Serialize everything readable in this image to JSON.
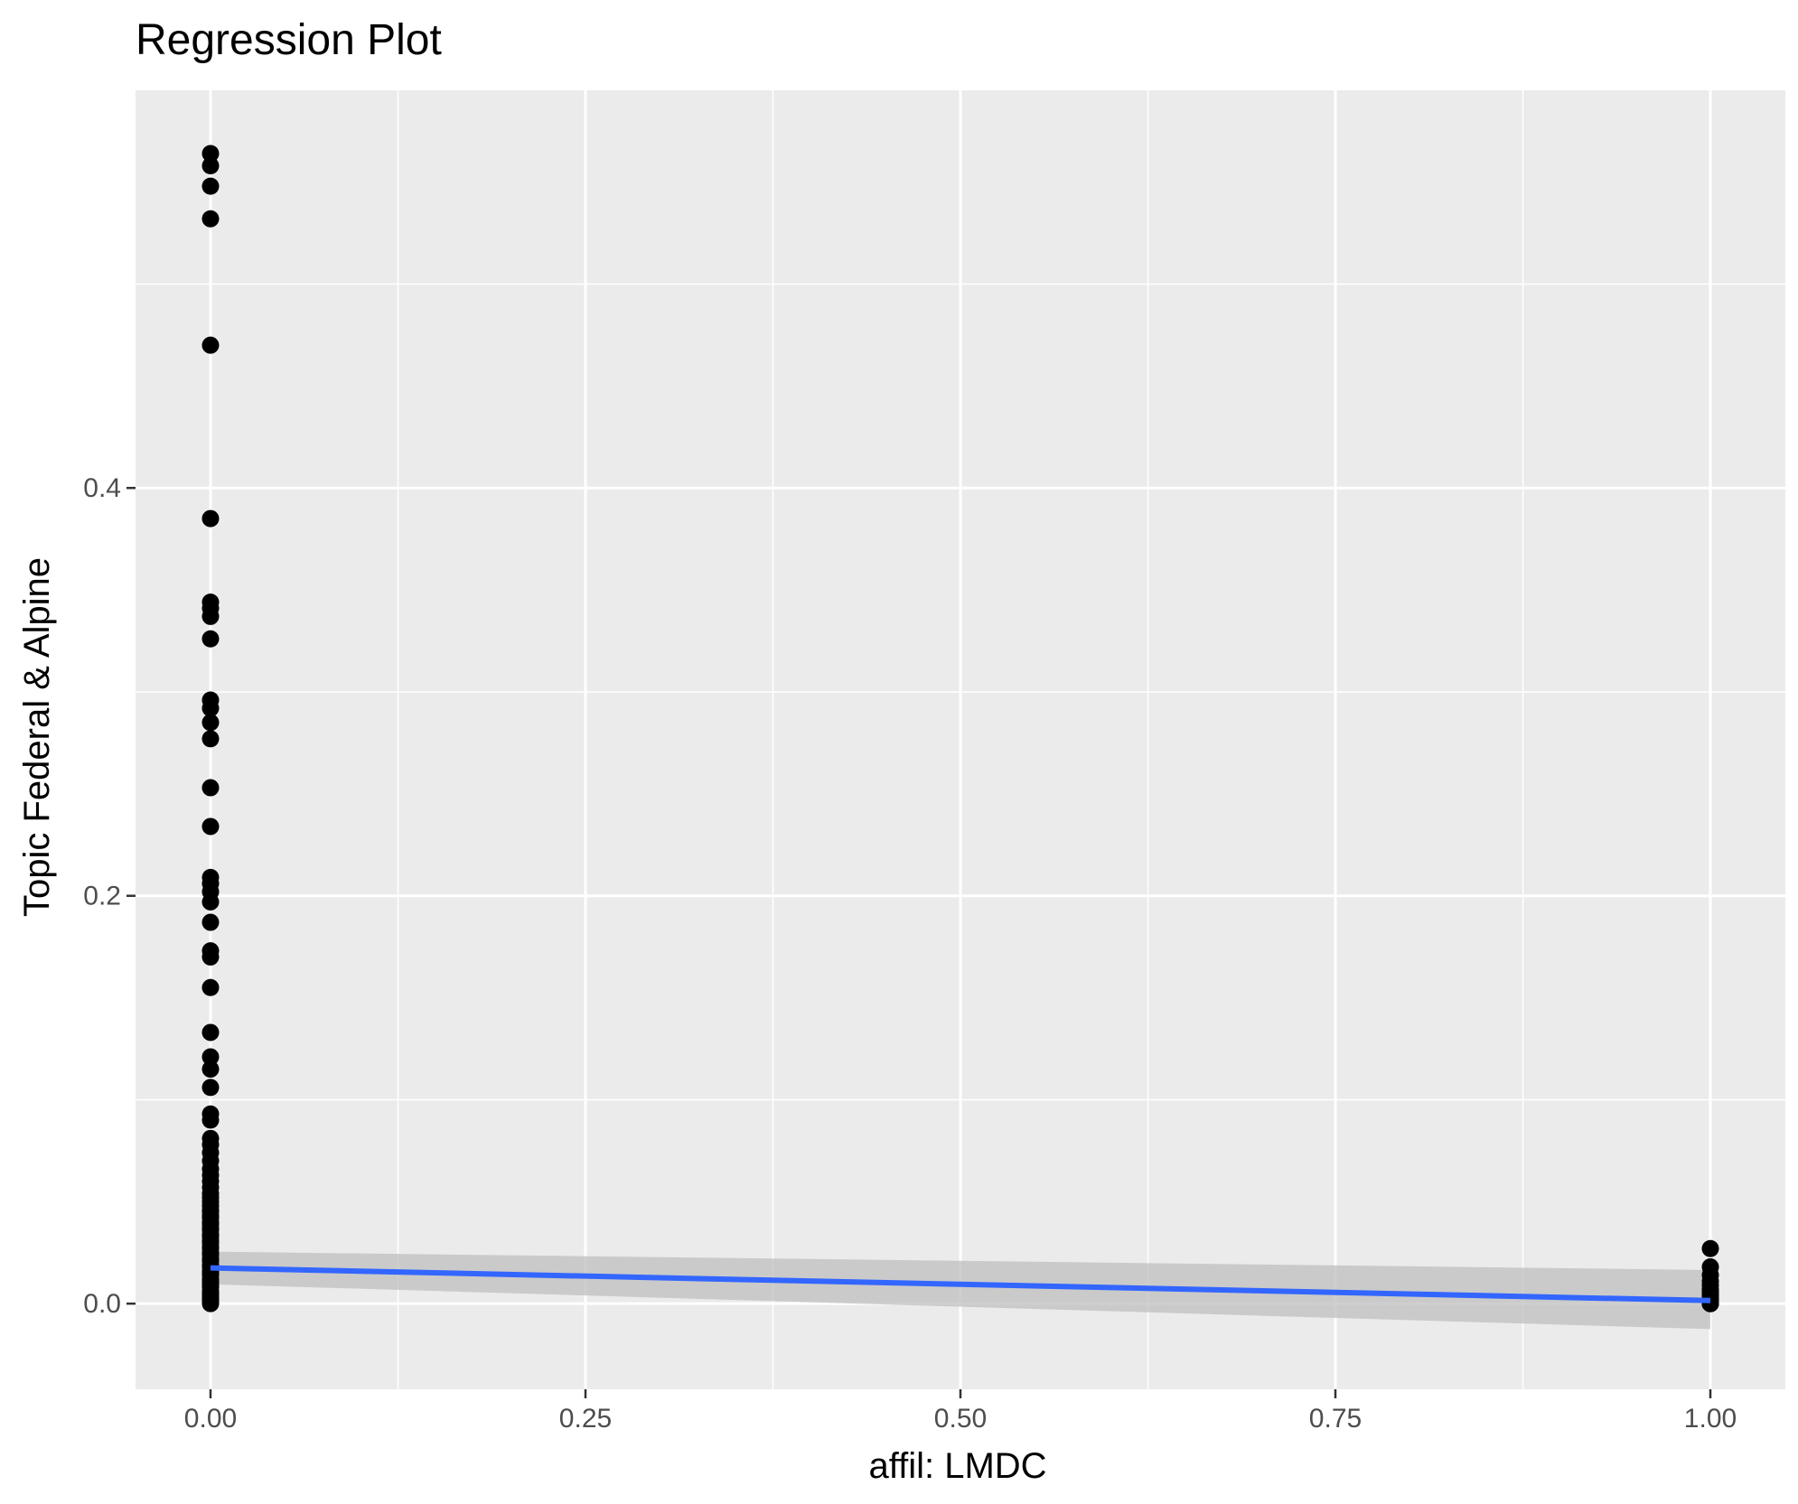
{
  "chart_data": {
    "type": "scatter",
    "title": "Regression Plot",
    "xlabel": "affil: LMDC",
    "ylabel": "Topic Federal & Alpine",
    "xlim": [
      -0.05,
      1.05
    ],
    "ylim": [
      -0.042,
      0.595
    ],
    "x_ticks": [
      0.0,
      0.25,
      0.5,
      0.75,
      1.0
    ],
    "x_tick_labels": [
      "0.00",
      "0.25",
      "0.50",
      "0.75",
      "1.00"
    ],
    "y_ticks": [
      0.0,
      0.2,
      0.4
    ],
    "y_tick_labels": [
      "0.0",
      "0.2",
      "0.4"
    ],
    "x_minor_ticks": [
      0.125,
      0.375,
      0.625,
      0.875
    ],
    "y_minor_ticks": [
      0.1,
      0.3,
      0.5
    ],
    "grid": true,
    "colors": {
      "panel": "#ebebeb",
      "grid": "#ffffff",
      "points": "#000000",
      "fit_line": "#3366ff",
      "confidence_band": "#bfbfbf"
    },
    "series": [
      {
        "x": [
          0,
          0,
          0,
          0,
          0,
          0,
          0,
          0,
          0,
          0,
          0,
          0,
          0,
          0,
          0,
          0,
          0,
          0,
          0,
          0,
          0,
          0,
          0,
          0,
          0,
          0,
          0,
          0,
          0,
          0,
          0,
          0,
          0,
          0,
          0,
          0,
          0,
          0,
          0,
          0,
          0,
          0,
          0,
          0,
          0,
          0,
          0,
          0,
          0,
          0,
          0,
          0,
          0,
          0,
          0,
          0,
          0,
          0,
          0,
          0,
          0,
          0,
          0,
          0,
          0,
          0,
          0,
          0,
          0,
          0,
          0,
          0,
          0,
          0,
          0,
          0,
          0,
          0,
          0,
          0,
          1,
          1,
          1,
          1,
          1,
          1,
          1,
          1,
          1,
          1,
          1,
          1,
          1,
          1,
          1,
          1,
          1
        ],
        "y": [
          0.564,
          0.558,
          0.548,
          0.532,
          0.47,
          0.385,
          0.344,
          0.341,
          0.337,
          0.326,
          0.296,
          0.292,
          0.285,
          0.277,
          0.253,
          0.234,
          0.209,
          0.206,
          0.202,
          0.197,
          0.187,
          0.173,
          0.17,
          0.155,
          0.133,
          0.121,
          0.115,
          0.106,
          0.093,
          0.09,
          0.081,
          0.078,
          0.074,
          0.07,
          0.066,
          0.06,
          0.052,
          0.048,
          0.045,
          0.042,
          0.039,
          0.036,
          0.033,
          0.03,
          0.027,
          0.024,
          0.021,
          0.018,
          0.015,
          0.012,
          0.01,
          0.008,
          0.006,
          0.004,
          0.003,
          0.002,
          0.001,
          0.0,
          0.063,
          0.057,
          0.05,
          0.043,
          0.037,
          0.031,
          0.025,
          0.019,
          0.014,
          0.009,
          0.005,
          0.002,
          0.001,
          0.0005,
          0.011,
          0.016,
          0.022,
          0.028,
          0.034,
          0.04,
          0.046,
          0.054,
          0.027,
          0.018,
          0.014,
          0.011,
          0.009,
          0.007,
          0.006,
          0.005,
          0.004,
          0.003,
          0.002,
          0.002,
          0.001,
          0.001,
          0.0,
          0.0,
          0.0
        ]
      }
    ],
    "fit": {
      "x": [
        0,
        1
      ],
      "y": [
        0.0175,
        0.0015
      ],
      "lower": [
        0.0095,
        -0.0125
      ],
      "upper": [
        0.0255,
        0.0165
      ]
    }
  }
}
